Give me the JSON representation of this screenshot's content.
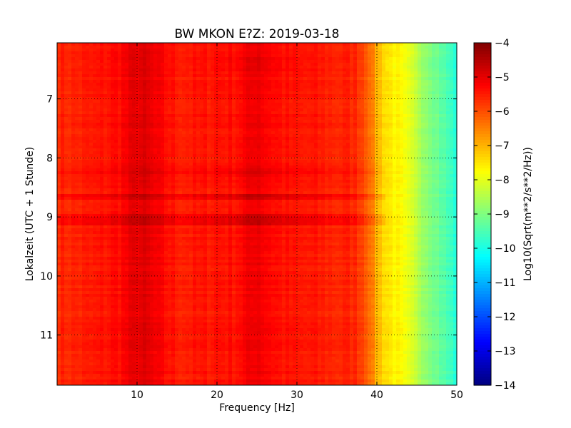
{
  "chart_data": {
    "type": "heatmap",
    "title": "BW MKON E?Z: 2019-03-18",
    "xlabel": "Frequency [Hz]",
    "ylabel": "Lokalzeit (UTC + 1 Stunde)",
    "xlim": [
      0,
      50
    ],
    "ylim": [
      6.05,
      11.85
    ],
    "y_inverted": true,
    "x_ticks": [
      10,
      20,
      30,
      40,
      50
    ],
    "y_ticks": [
      7,
      8,
      9,
      10,
      11
    ],
    "grid": true,
    "colorbar": {
      "label": "Log10(Sqrt(m**2/s**2/Hz))",
      "range": [
        -14,
        -4
      ],
      "ticks": [
        -4,
        -5,
        -6,
        -7,
        -8,
        -9,
        -10,
        -11,
        -12,
        -13,
        -14
      ],
      "colormap": "jet"
    },
    "profile": {
      "frequency_hz": [
        0,
        2,
        5,
        8,
        10,
        11,
        13,
        15,
        18,
        20,
        22,
        24,
        25,
        26,
        28,
        30,
        32,
        35,
        37,
        38,
        39,
        40,
        41,
        42,
        43,
        44,
        45,
        46,
        47,
        48,
        49,
        50
      ],
      "level": [
        -5.6,
        -5.6,
        -5.5,
        -5.3,
        -5.0,
        -5.0,
        -5.3,
        -5.5,
        -5.5,
        -5.4,
        -5.4,
        -5.2,
        -5.0,
        -5.2,
        -5.4,
        -5.5,
        -5.5,
        -5.6,
        -5.6,
        -5.8,
        -6.2,
        -7.0,
        -7.4,
        -7.6,
        -7.8,
        -8.1,
        -8.4,
        -8.7,
        -9.0,
        -9.3,
        -9.6,
        -9.9
      ]
    },
    "time_bands": [
      {
        "start": 8.6,
        "end": 8.72,
        "offset": 0.45
      },
      {
        "start": 8.95,
        "end": 9.12,
        "offset": 0.4
      },
      {
        "start": 8.2,
        "end": 8.3,
        "offset": 0.2
      },
      {
        "start": 6.3,
        "end": 6.55,
        "offset": 0.2
      }
    ]
  }
}
